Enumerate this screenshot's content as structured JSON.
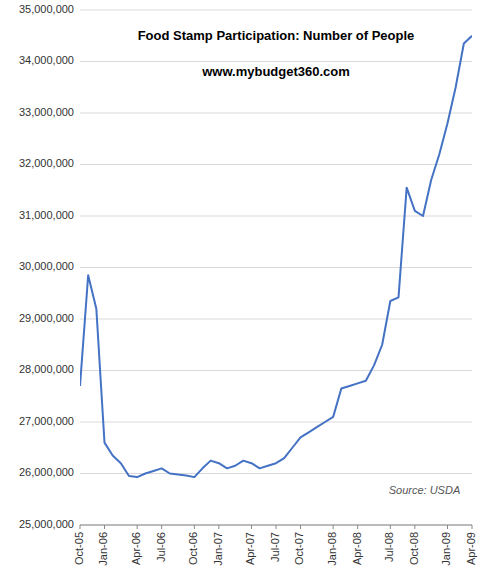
{
  "chart_data": {
    "type": "line",
    "title": "Food Stamp Participation:  Number of People",
    "subtitle": "www.mybudget360.com",
    "annotations": [
      {
        "text": "Source:  USDA"
      }
    ],
    "color": "#4472C4",
    "grid": true,
    "categories": [
      "Oct-05",
      null,
      null,
      "Jan-06",
      null,
      null,
      null,
      "Apr-06",
      null,
      null,
      "Jul-06",
      null,
      null,
      null,
      "Oct-06",
      null,
      null,
      "Jan-07",
      null,
      null,
      null,
      "Apr-07",
      null,
      null,
      "Jul-07",
      null,
      null,
      "Oct-07",
      null,
      null,
      null,
      "Jan-08",
      null,
      null,
      "Apr-08",
      null,
      null,
      null,
      "Jul-08",
      null,
      null,
      "Oct-08",
      null,
      null,
      null,
      "Jan-09",
      null,
      null,
      "Apr-09"
    ],
    "values": [
      27700000,
      29850000,
      29200000,
      26600000,
      26350000,
      26200000,
      25950000,
      25930000,
      26000000,
      26050000,
      26100000,
      26000000,
      25980000,
      25960000,
      25930000,
      26100000,
      26250000,
      26200000,
      26100000,
      26150000,
      26250000,
      26200000,
      26100000,
      26150000,
      26200000,
      26300000,
      26500000,
      26700000,
      26800000,
      26900000,
      27000000,
      27100000,
      27650000,
      27700000,
      27750000,
      27800000,
      28100000,
      28500000,
      29350000,
      29420000,
      31550000,
      31100000,
      31000000,
      31700000,
      32200000,
      32800000,
      33500000,
      34350000,
      34500000
    ],
    "ylim": [
      25000000,
      35000000
    ],
    "yticks": [
      {
        "value": 25000000,
        "label": "25,000,000"
      },
      {
        "value": 26000000,
        "label": "26,000,000"
      },
      {
        "value": 27000000,
        "label": "27,000,000"
      },
      {
        "value": 28000000,
        "label": "28,000,000"
      },
      {
        "value": 29000000,
        "label": "29,000,000"
      },
      {
        "value": 30000000,
        "label": "30,000,000"
      },
      {
        "value": 31000000,
        "label": "31,000,000"
      },
      {
        "value": 32000000,
        "label": "32,000,000"
      },
      {
        "value": 33000000,
        "label": "33,000,000"
      },
      {
        "value": 34000000,
        "label": "34,000,000"
      },
      {
        "value": 35000000,
        "label": "35,000,000"
      }
    ]
  }
}
